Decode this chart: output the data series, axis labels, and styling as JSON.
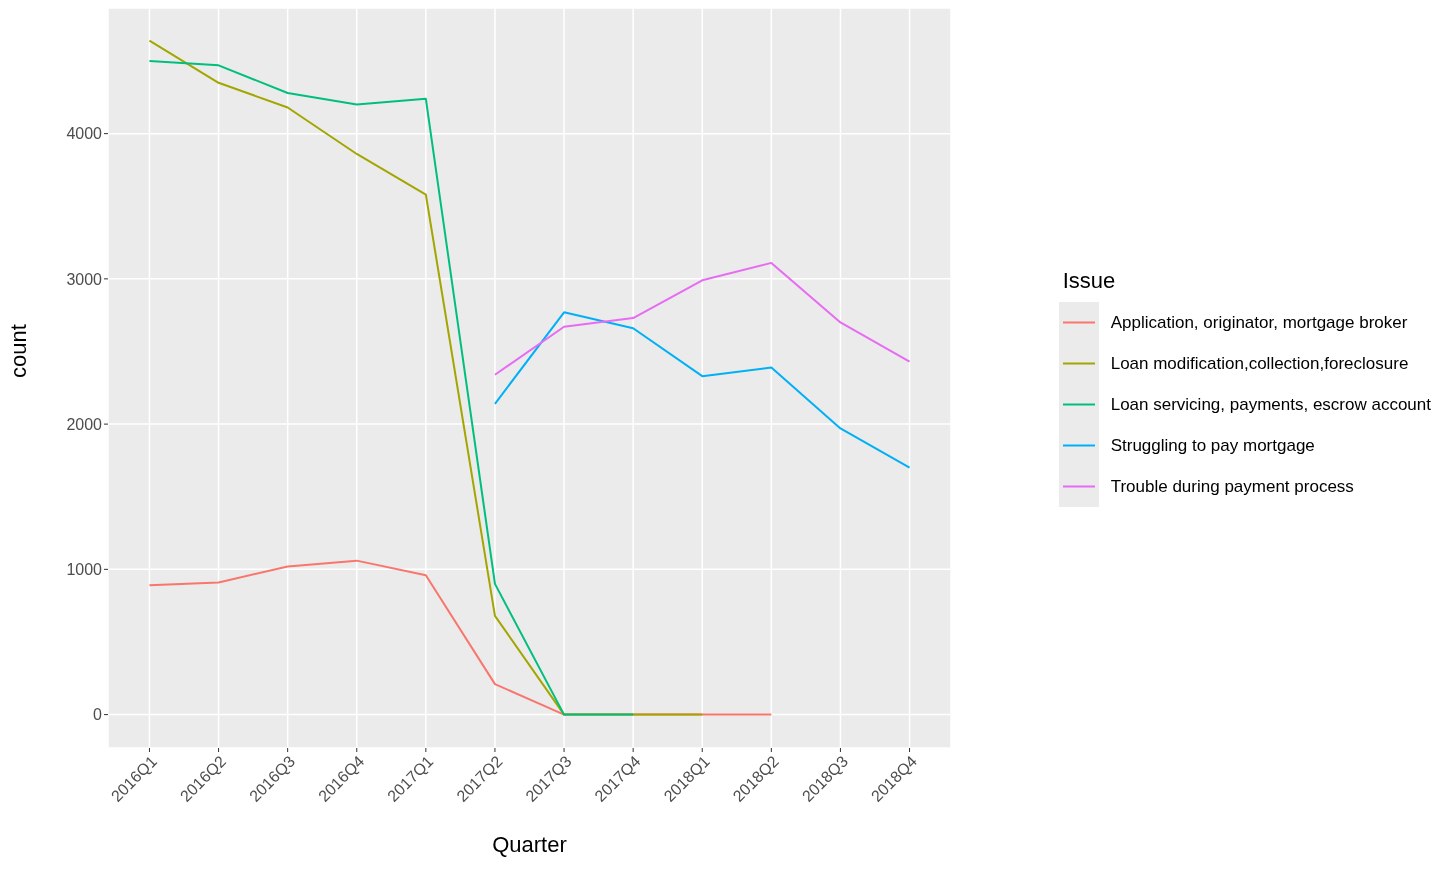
{
  "chart_data": {
    "type": "line",
    "xlabel": "Quarter",
    "ylabel": "count",
    "legend_title": "Issue",
    "categories": [
      "2016Q1",
      "2016Q2",
      "2016Q3",
      "2016Q4",
      "2017Q1",
      "2017Q2",
      "2017Q3",
      "2017Q4",
      "2018Q1",
      "2018Q2",
      "2018Q3",
      "2018Q4"
    ],
    "series": [
      {
        "name": "Application, originator, mortgage broker",
        "color": "#f8766d",
        "values": [
          890,
          910,
          1020,
          1060,
          960,
          210,
          0,
          0,
          0,
          0,
          null,
          null
        ]
      },
      {
        "name": "Loan modification,collection,foreclosure",
        "color": "#a3a500",
        "values": [
          4640,
          4350,
          4180,
          3860,
          3580,
          680,
          0,
          0,
          0,
          null,
          null,
          null
        ]
      },
      {
        "name": "Loan servicing, payments, escrow account",
        "color": "#00bf7d",
        "values": [
          4500,
          4470,
          4280,
          4200,
          4240,
          900,
          0,
          0,
          null,
          null,
          null,
          null
        ]
      },
      {
        "name": "Struggling to pay mortgage",
        "color": "#00b0f6",
        "values": [
          null,
          null,
          null,
          null,
          null,
          2140,
          2770,
          2660,
          2330,
          2390,
          1970,
          1700
        ]
      },
      {
        "name": "Trouble during payment process",
        "color": "#e76bf3",
        "values": [
          null,
          null,
          null,
          null,
          null,
          2340,
          2670,
          2730,
          2990,
          3110,
          2700,
          2430
        ]
      }
    ],
    "ylim": [
      -230,
      4865
    ],
    "yticks": [
      0,
      1000,
      2000,
      3000,
      4000
    ],
    "grid": true,
    "legend": "right",
    "marker": "none",
    "line_style": "solid"
  }
}
